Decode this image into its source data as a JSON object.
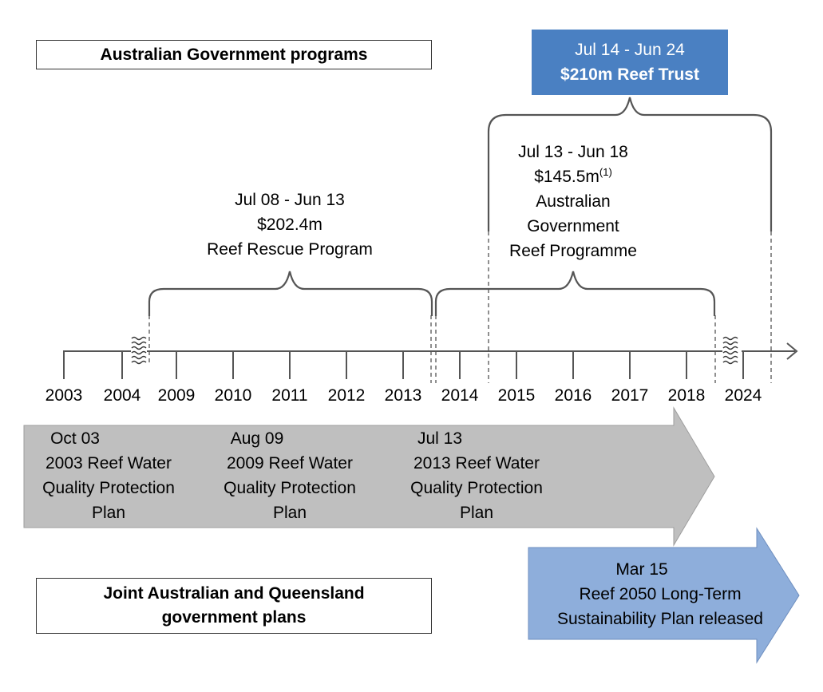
{
  "legend": {
    "federal": "Australian Government programs",
    "joint_line1": "Joint Australian and Queensland",
    "joint_line2": "government plans"
  },
  "timeline": {
    "years": [
      "2003",
      "2004",
      "2009",
      "2010",
      "2011",
      "2012",
      "2013",
      "2014",
      "2015",
      "2016",
      "2017",
      "2018",
      "2024"
    ]
  },
  "programs": {
    "reef_trust": {
      "period": "Jul 14 - Jun 24",
      "name": "$210m Reef Trust"
    },
    "reef_rescue": {
      "period": "Jul 08 - Jun 13",
      "amount": "$202.4m",
      "name": "Reef Rescue Program"
    },
    "reef_programme": {
      "period": "Jul 13 - Jun 18",
      "amount": "$145.5m",
      "footnote": "(1)",
      "name_line1": "Australian",
      "name_line2": "Government",
      "name_line3": "Reef Programme"
    }
  },
  "plans": {
    "p2003": {
      "date": "Oct 03",
      "line1": "2003 Reef Water",
      "line2": "Quality Protection",
      "line3": "Plan"
    },
    "p2009": {
      "date": "Aug 09",
      "line1": "2009 Reef Water",
      "line2": "Quality Protection",
      "line3": "Plan"
    },
    "p2013": {
      "date": "Jul 13",
      "line1": "2013 Reef Water",
      "line2": "Quality Protection",
      "line3": "Plan"
    },
    "reef2050": {
      "date": "Mar 15",
      "line1": "Reef 2050 Long-Term",
      "line2": "Sustainability Plan released"
    }
  },
  "colors": {
    "grey_arrow": "#bfbfbf",
    "blue_arrow": "#8eaedb",
    "trust_box": "#4a80c2",
    "lines": "#555555"
  }
}
